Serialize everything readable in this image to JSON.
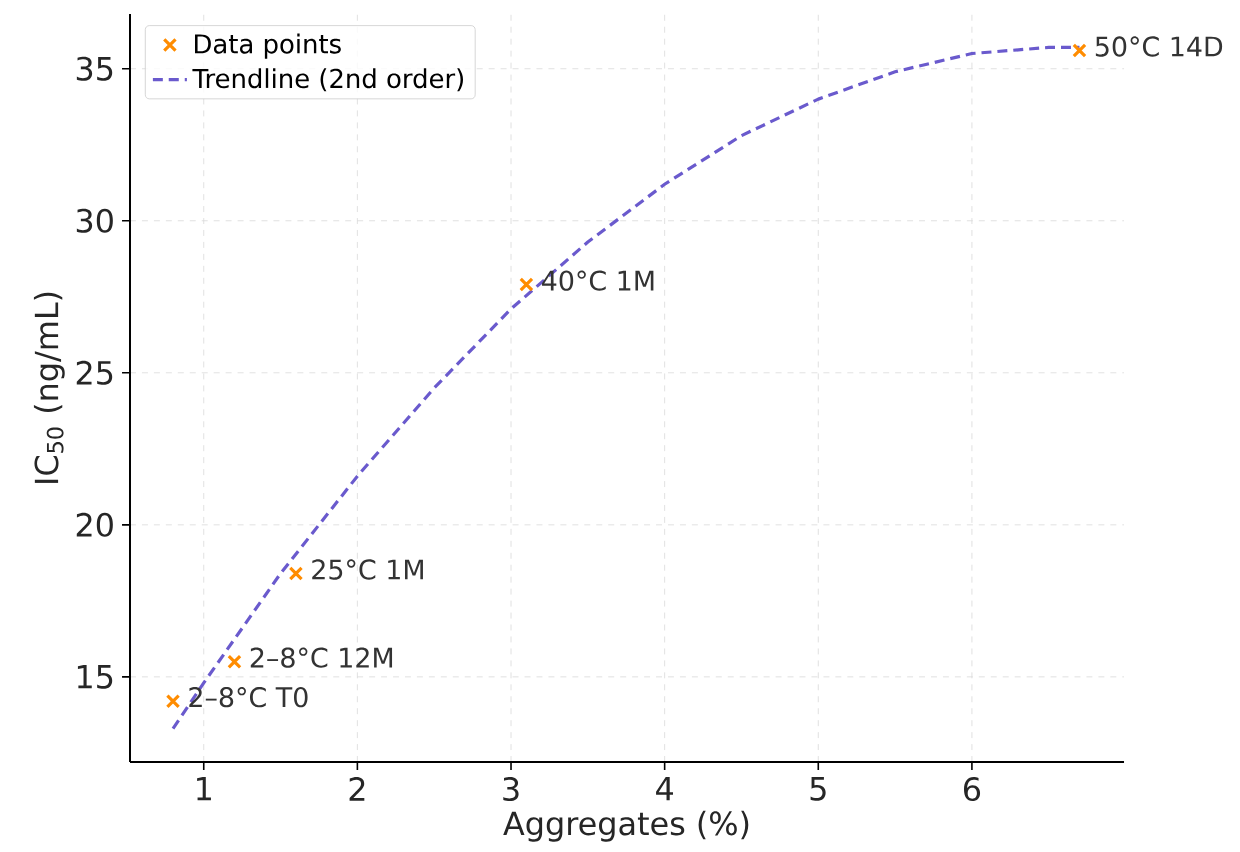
{
  "chart_data": {
    "type": "scatter",
    "xlabel": "Aggregates (%)",
    "ylabel": "IC$_{50}$ (ng/mL)",
    "xlim": [
      0.52,
      6.99
    ],
    "ylim": [
      12.2,
      36.8
    ],
    "xticks": [
      1,
      2,
      3,
      4,
      5,
      6
    ],
    "yticks": [
      15,
      20,
      25,
      30,
      35
    ],
    "grid": true,
    "legend": "top left",
    "series": [
      {
        "name": "Data points",
        "color": "#ff8c00",
        "marker": "cross",
        "x": [
          0.8,
          1.2,
          1.6,
          3.1,
          6.7
        ],
        "values": [
          14.2,
          15.5,
          18.4,
          27.9,
          35.6
        ]
      },
      {
        "name": "Trendline (2nd order)",
        "type": "line",
        "color": "#6a5acd",
        "line_style": "dashed",
        "marker": "none",
        "x": [
          0.8,
          1,
          1.5,
          2,
          2.5,
          3,
          3.5,
          4,
          4.5,
          5,
          5.5,
          6,
          6.5,
          6.7
        ],
        "values": [
          13.3,
          14.8,
          18.4,
          21.6,
          24.5,
          27.1,
          29.3,
          31.2,
          32.8,
          34.0,
          34.9,
          35.5,
          35.7,
          35.7
        ]
      }
    ],
    "annotations": [
      {
        "text": "2–8°C T0",
        "x": 0.8,
        "y": 14.2
      },
      {
        "text": "2–8°C 12M",
        "x": 1.2,
        "y": 15.5
      },
      {
        "text": "25°C 1M",
        "x": 1.6,
        "y": 18.4
      },
      {
        "text": "40°C 1M",
        "x": 3.1,
        "y": 27.9
      },
      {
        "text": "50°C 14D",
        "x": 6.7,
        "y": 35.6
      }
    ]
  }
}
